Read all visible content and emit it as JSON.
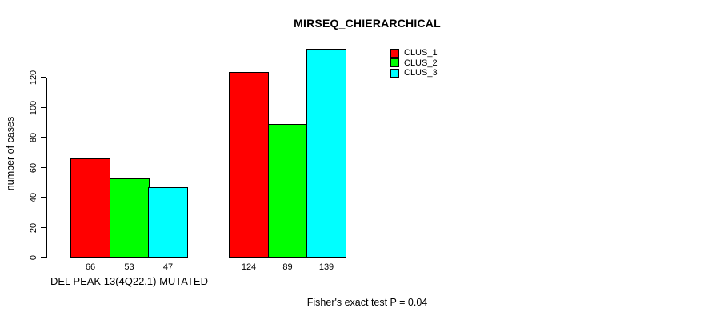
{
  "chart_data": {
    "type": "bar",
    "title": "MIRSEQ_CHIERARCHICAL",
    "xlabel": "",
    "ylabel": "number of cases",
    "ylim": [
      0,
      140
    ],
    "y_ticks": [
      0,
      20,
      40,
      60,
      80,
      100,
      120
    ],
    "grid": false,
    "categories": [
      "DEL PEAK 13(4Q22.1) MUTATED",
      ""
    ],
    "series": [
      {
        "name": "CLUS_1",
        "color": "#ff0000",
        "values": [
          66,
          124
        ]
      },
      {
        "name": "CLUS_2",
        "color": "#00ff00",
        "values": [
          53,
          89
        ]
      },
      {
        "name": "CLUS_3",
        "color": "#00ffff",
        "values": [
          47,
          139
        ]
      }
    ],
    "legend": {
      "position": "top-right-inside",
      "entries": [
        "CLUS_1",
        "CLUS_2",
        "CLUS_3"
      ]
    },
    "annotation": "Fisher's exact test P = 0.04"
  }
}
